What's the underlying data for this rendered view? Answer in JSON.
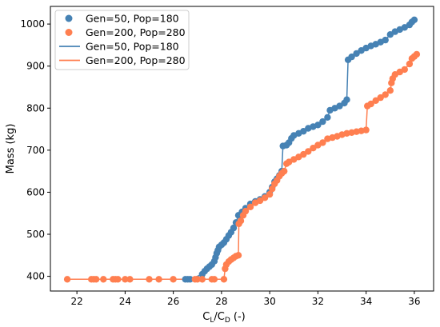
{
  "chart_data": {
    "type": "scatter",
    "xlabel_main": "C",
    "xlabel_sub1": "L",
    "xlabel_slash": "/C",
    "xlabel_sub2": "D",
    "xlabel_unit": " (-)",
    "ylabel": "Mass (kg)",
    "xlim": [
      20.9,
      36.8
    ],
    "ylim": [
      365,
      1042
    ],
    "xticks": [
      22,
      24,
      26,
      28,
      30,
      32,
      34,
      36
    ],
    "yticks": [
      400,
      500,
      600,
      700,
      800,
      900,
      1000
    ],
    "grid": false,
    "legend_position": "top-left",
    "legend": [
      {
        "label": "Gen=50, Pop=180",
        "kind": "marker",
        "color": "#4682b4"
      },
      {
        "label": "Gen=200, Pop=280",
        "kind": "marker",
        "color": "#ff7f50"
      },
      {
        "label": "Gen=50, Pop=180",
        "kind": "line",
        "color": "#4682b4"
      },
      {
        "label": "Gen=200, Pop=280",
        "kind": "line",
        "color": "#ff7f50"
      }
    ],
    "series": [
      {
        "color": "#4682b4",
        "points": [
          [
            26.5,
            393
          ],
          [
            26.6,
            393
          ],
          [
            26.7,
            393
          ],
          [
            27.2,
            405
          ],
          [
            27.3,
            412
          ],
          [
            27.4,
            418
          ],
          [
            27.5,
            423
          ],
          [
            27.6,
            428
          ],
          [
            27.7,
            436
          ],
          [
            27.75,
            445
          ],
          [
            27.8,
            455
          ],
          [
            27.85,
            462
          ],
          [
            27.9,
            470
          ],
          [
            28.0,
            475
          ],
          [
            28.1,
            480
          ],
          [
            28.2,
            488
          ],
          [
            28.3,
            497
          ],
          [
            28.4,
            505
          ],
          [
            28.5,
            515
          ],
          [
            28.6,
            528
          ],
          [
            28.7,
            545
          ],
          [
            28.85,
            553
          ],
          [
            29.0,
            562
          ],
          [
            29.2,
            572
          ],
          [
            29.4,
            578
          ],
          [
            29.6,
            583
          ],
          [
            29.8,
            590
          ],
          [
            30.0,
            600
          ],
          [
            30.1,
            612
          ],
          [
            30.2,
            625
          ],
          [
            30.3,
            632
          ],
          [
            30.4,
            640
          ],
          [
            30.5,
            650
          ],
          [
            30.55,
            710
          ],
          [
            30.7,
            712
          ],
          [
            30.8,
            718
          ],
          [
            30.9,
            728
          ],
          [
            31.0,
            735
          ],
          [
            31.2,
            740
          ],
          [
            31.4,
            745
          ],
          [
            31.6,
            752
          ],
          [
            31.8,
            756
          ],
          [
            32.0,
            760
          ],
          [
            32.2,
            768
          ],
          [
            32.4,
            778
          ],
          [
            32.5,
            795
          ],
          [
            32.7,
            800
          ],
          [
            32.9,
            805
          ],
          [
            33.1,
            812
          ],
          [
            33.2,
            820
          ],
          [
            33.25,
            915
          ],
          [
            33.4,
            922
          ],
          [
            33.6,
            930
          ],
          [
            33.8,
            937
          ],
          [
            34.0,
            943
          ],
          [
            34.2,
            948
          ],
          [
            34.4,
            952
          ],
          [
            34.6,
            957
          ],
          [
            34.8,
            962
          ],
          [
            35.0,
            975
          ],
          [
            35.2,
            982
          ],
          [
            35.4,
            987
          ],
          [
            35.6,
            992
          ],
          [
            35.8,
            998
          ],
          [
            35.9,
            1005
          ],
          [
            36.0,
            1010
          ]
        ]
      },
      {
        "color": "#ff7f50",
        "points": [
          [
            21.6,
            393
          ],
          [
            22.6,
            393
          ],
          [
            22.7,
            393
          ],
          [
            22.8,
            393
          ],
          [
            23.1,
            393
          ],
          [
            23.5,
            393
          ],
          [
            23.6,
            393
          ],
          [
            23.7,
            393
          ],
          [
            24.0,
            393
          ],
          [
            24.2,
            393
          ],
          [
            25.0,
            393
          ],
          [
            25.4,
            393
          ],
          [
            26.0,
            393
          ],
          [
            26.9,
            393
          ],
          [
            27.0,
            393
          ],
          [
            27.2,
            393
          ],
          [
            27.6,
            393
          ],
          [
            27.7,
            393
          ],
          [
            28.1,
            393
          ],
          [
            28.15,
            418
          ],
          [
            28.2,
            428
          ],
          [
            28.3,
            435
          ],
          [
            28.4,
            440
          ],
          [
            28.5,
            444
          ],
          [
            28.6,
            448
          ],
          [
            28.7,
            450
          ],
          [
            28.72,
            525
          ],
          [
            28.8,
            532
          ],
          [
            28.9,
            545
          ],
          [
            29.0,
            555
          ],
          [
            29.2,
            565
          ],
          [
            29.4,
            575
          ],
          [
            29.6,
            580
          ],
          [
            29.8,
            587
          ],
          [
            30.0,
            595
          ],
          [
            30.1,
            608
          ],
          [
            30.2,
            620
          ],
          [
            30.3,
            628
          ],
          [
            30.4,
            638
          ],
          [
            30.5,
            645
          ],
          [
            30.6,
            650
          ],
          [
            30.7,
            668
          ],
          [
            30.8,
            672
          ],
          [
            31.0,
            678
          ],
          [
            31.2,
            684
          ],
          [
            31.4,
            690
          ],
          [
            31.6,
            697
          ],
          [
            31.8,
            705
          ],
          [
            32.0,
            712
          ],
          [
            32.2,
            718
          ],
          [
            32.4,
            727
          ],
          [
            32.6,
            730
          ],
          [
            32.8,
            733
          ],
          [
            33.0,
            737
          ],
          [
            33.2,
            740
          ],
          [
            33.4,
            742
          ],
          [
            33.6,
            744
          ],
          [
            33.8,
            746
          ],
          [
            34.0,
            748
          ],
          [
            34.05,
            805
          ],
          [
            34.2,
            810
          ],
          [
            34.4,
            818
          ],
          [
            34.6,
            825
          ],
          [
            34.8,
            832
          ],
          [
            35.0,
            842
          ],
          [
            35.05,
            860
          ],
          [
            35.1,
            870
          ],
          [
            35.2,
            880
          ],
          [
            35.4,
            886
          ],
          [
            35.6,
            892
          ],
          [
            35.8,
            905
          ],
          [
            35.9,
            918
          ],
          [
            36.0,
            923
          ],
          [
            36.1,
            928
          ]
        ]
      }
    ]
  }
}
